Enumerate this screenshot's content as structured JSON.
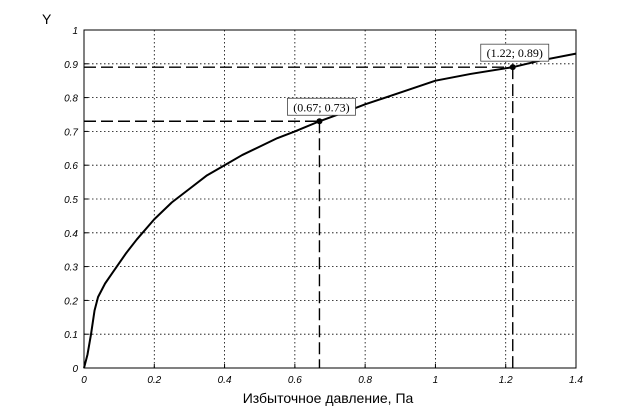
{
  "chart_data": {
    "type": "line",
    "xlabel": "Избыточное давление, Па",
    "ylabel": "Y",
    "xlim": [
      0,
      1.4
    ],
    "ylim": [
      0,
      1
    ],
    "grid": true,
    "x_ticks": [
      "0",
      "0.2",
      "0.4",
      "0.6",
      "0.8",
      "1",
      "1.2",
      "1.4"
    ],
    "y_ticks": [
      "0",
      "0.1",
      "0.2",
      "0.3",
      "0.4",
      "0.5",
      "0.6",
      "0.7",
      "0.8",
      "0.9",
      "1"
    ],
    "series": [
      {
        "x": [
          0,
          0.01,
          0.02,
          0.03,
          0.04,
          0.06,
          0.08,
          0.1,
          0.12,
          0.15,
          0.2,
          0.25,
          0.3,
          0.35,
          0.4,
          0.45,
          0.5,
          0.55,
          0.6,
          0.67,
          0.75,
          0.8,
          0.9,
          1.0,
          1.1,
          1.22,
          1.3,
          1.4
        ],
        "y": [
          0,
          0.04,
          0.1,
          0.17,
          0.21,
          0.25,
          0.28,
          0.31,
          0.34,
          0.38,
          0.44,
          0.49,
          0.53,
          0.57,
          0.6,
          0.63,
          0.655,
          0.68,
          0.7,
          0.73,
          0.76,
          0.78,
          0.815,
          0.85,
          0.87,
          0.89,
          0.91,
          0.93
        ]
      }
    ],
    "annotations": [
      {
        "label": "(0.67; 0.73)",
        "x": 0.67,
        "y": 0.73
      },
      {
        "label": "(1.22; 0.89)",
        "x": 1.22,
        "y": 0.89
      }
    ]
  }
}
